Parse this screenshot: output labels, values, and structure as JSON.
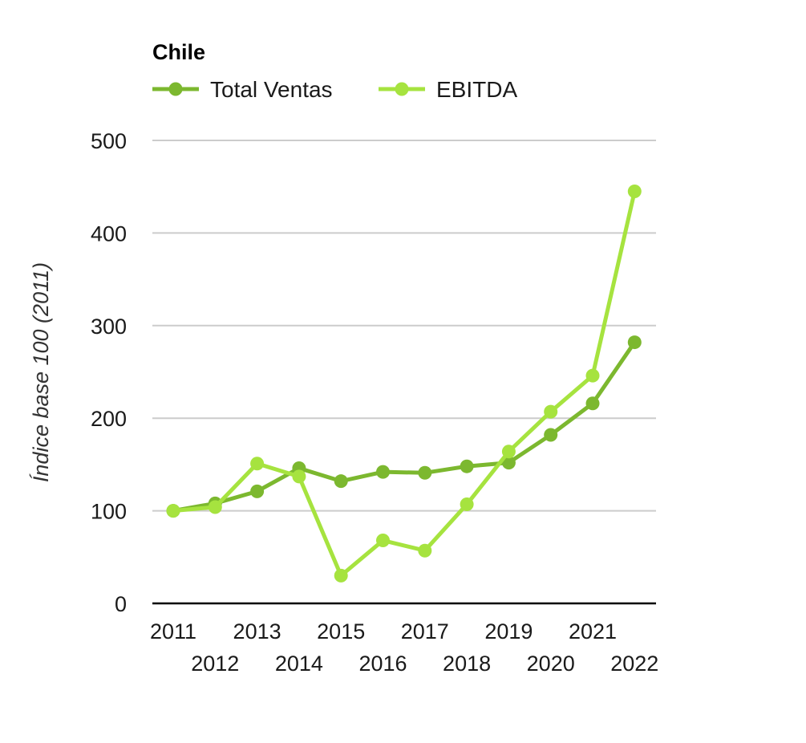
{
  "chart_data": {
    "type": "line",
    "title": "Chile",
    "xlabel": "",
    "ylabel": "Índice base 100 (2011)",
    "categories": [
      "2011",
      "2012",
      "2013",
      "2014",
      "2015",
      "2016",
      "2017",
      "2018",
      "2019",
      "2020",
      "2021",
      "2022"
    ],
    "ylim": [
      0,
      500
    ],
    "yticks": [
      0,
      100,
      200,
      300,
      400,
      500
    ],
    "grid": true,
    "legend_position": "top-left",
    "series": [
      {
        "name": "Total Ventas",
        "color": "#7cb82f",
        "values": [
          100,
          108,
          121,
          146,
          132,
          142,
          141,
          148,
          152,
          182,
          216,
          282
        ]
      },
      {
        "name": "EBITDA",
        "color": "#a6e33f",
        "values": [
          100,
          104,
          151,
          137,
          30,
          68,
          57,
          107,
          164,
          207,
          246,
          445
        ]
      }
    ]
  }
}
